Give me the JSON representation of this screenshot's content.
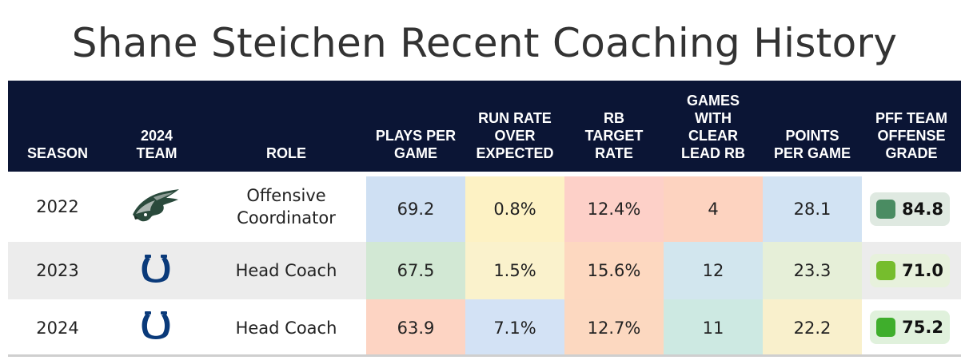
{
  "chart_data": {
    "type": "table",
    "title": "Shane Steichen Recent Coaching History",
    "columns": [
      "SEASON",
      "2024\nTEAM",
      "ROLE",
      "PLAYS PER\nGAME",
      "RUN RATE\nOVER\nEXPECTED",
      "RB\nTARGET\nRATE",
      "GAMES\nWITH\nCLEAR\nLEAD RB",
      "POINTS\nPER GAME",
      "PFF TEAM\nOFFENSE\nGRADE"
    ],
    "rows": [
      {
        "season": "2022",
        "team_icon": "eagles-logo-icon",
        "role": "Offensive\nCoordinator",
        "plays_per_game": "69.2",
        "run_rate_over_expected": "0.8%",
        "rb_target_rate": "12.4%",
        "games_with_clear_lead_rb": "4",
        "points_per_game": "28.1",
        "pff_offense_grade": "84.8"
      },
      {
        "season": "2023",
        "team_icon": "colts-horseshoe-icon",
        "role": "Head Coach",
        "plays_per_game": "67.5",
        "run_rate_over_expected": "1.5%",
        "rb_target_rate": "15.6%",
        "games_with_clear_lead_rb": "12",
        "points_per_game": "23.3",
        "pff_offense_grade": "71.0"
      },
      {
        "season": "2024",
        "team_icon": "colts-horseshoe-icon",
        "role": "Head Coach",
        "plays_per_game": "63.9",
        "run_rate_over_expected": "7.1%",
        "rb_target_rate": "12.7%",
        "games_with_clear_lead_rb": "11",
        "points_per_game": "22.2",
        "pff_offense_grade": "75.2"
      }
    ],
    "cell_colors": [
      [
        "#cfe0f3",
        "#fdf2c4",
        "#fdd0c8",
        "#fdd3c0",
        "#d2e3f3"
      ],
      [
        "#d2e8d4",
        "#faf2cc",
        "#fdd8c0",
        "#d2e6ee",
        "#e6efd8"
      ],
      [
        "#fdd4c3",
        "#d3e2f5",
        "#fcd8c0",
        "#cde9e2",
        "#f9f0cc"
      ]
    ],
    "grade_colors": [
      {
        "badge": "#4a8c62",
        "bg": "#dfe9e1"
      },
      {
        "badge": "#76bd2d",
        "bg": "#e7f1dc"
      },
      {
        "badge": "#3fae2c",
        "bg": "#e0f1dc"
      }
    ],
    "header_bg": "#0b1535"
  }
}
